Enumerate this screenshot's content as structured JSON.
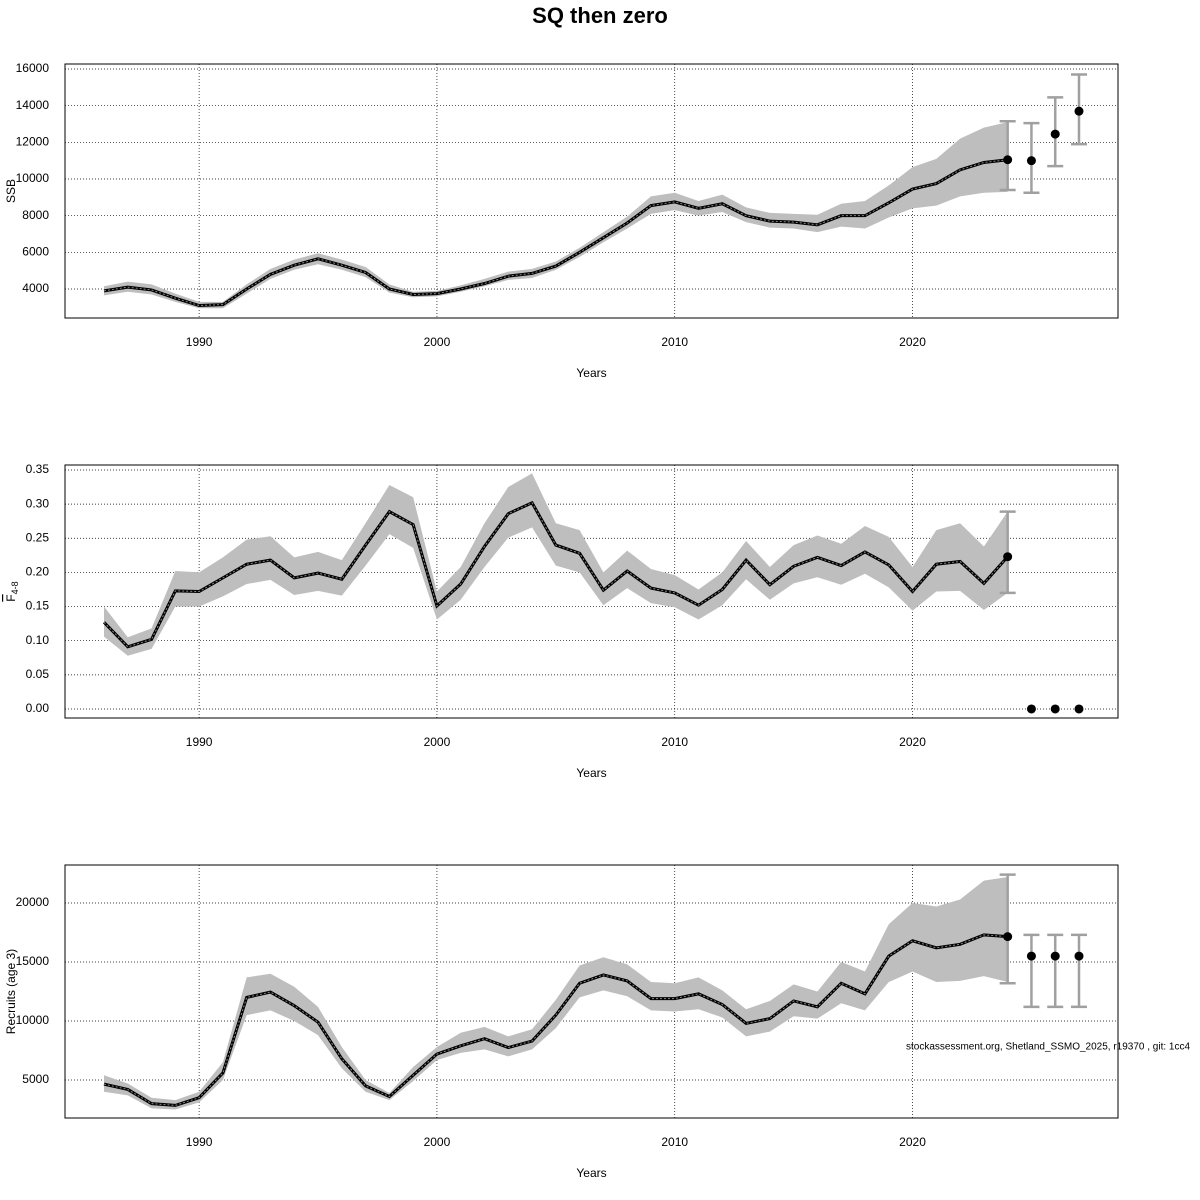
{
  "title": "SQ then zero",
  "note": "stockassessment.org, Shetland_SSMO_2025, r19370 , git: 1cc4",
  "chart_data": [
    {
      "type": "line",
      "y_label": "SSB",
      "x_label": "Years",
      "xlim": [
        1984.36,
        2028.64
      ],
      "xticks": [
        1990,
        2000,
        2010,
        2020
      ],
      "ylim": [
        2418,
        16273
      ],
      "yticks": [
        4000,
        6000,
        8000,
        10000,
        12000,
        14000,
        16000
      ],
      "grid": true,
      "line_color": "#000000",
      "band_color": "#bebebe",
      "errorbar_color": "#a0a0a0",
      "point_color": "#000000",
      "x": [
        1986,
        1987,
        1988,
        1989,
        1990,
        1991,
        1992,
        1993,
        1994,
        1995,
        1996,
        1997,
        1998,
        1999,
        2000,
        2001,
        2002,
        2003,
        2004,
        2005,
        2006,
        2007,
        2008,
        2009,
        2010,
        2011,
        2012,
        2013,
        2014,
        2015,
        2016,
        2017,
        2018,
        2019,
        2020,
        2021,
        2022,
        2023,
        2024
      ],
      "values": [
        3900,
        4100,
        3950,
        3500,
        3100,
        3150,
        4000,
        4800,
        5300,
        5650,
        5300,
        4900,
        4000,
        3700,
        3750,
        4000,
        4300,
        4700,
        4850,
        5250,
        6000,
        6800,
        7600,
        8550,
        8750,
        8400,
        8650,
        8000,
        7700,
        7650,
        7500,
        8000,
        8000,
        8700,
        9450,
        9750,
        10500,
        10900,
        11050
      ],
      "upper": [
        4150,
        4400,
        4250,
        3750,
        3300,
        3300,
        4250,
        5100,
        5600,
        5950,
        5600,
        5200,
        4250,
        3850,
        3900,
        4200,
        4550,
        4950,
        5100,
        5500,
        6250,
        7100,
        7950,
        9050,
        9250,
        8800,
        9150,
        8450,
        8150,
        8100,
        8050,
        8650,
        8800,
        9650,
        10650,
        11100,
        12200,
        12800,
        13100
      ],
      "lower": [
        3650,
        3850,
        3700,
        3300,
        2950,
        2950,
        3750,
        4550,
        5050,
        5350,
        5050,
        4650,
        3800,
        3550,
        3600,
        3850,
        4150,
        4500,
        4600,
        5050,
        5750,
        6550,
        7300,
        8100,
        8300,
        8000,
        8200,
        7650,
        7350,
        7300,
        7100,
        7400,
        7300,
        7900,
        8400,
        8550,
        9050,
        9250,
        9300
      ],
      "forecast": {
        "x": [
          2024,
          2025,
          2026,
          2027
        ],
        "values": [
          11050,
          11000,
          12450,
          13700
        ],
        "lower": [
          9400,
          9250,
          10700,
          11900
        ],
        "upper": [
          13150,
          13050,
          14450,
          15700
        ]
      }
    },
    {
      "type": "line",
      "y_label": "F",
      "y_label_sub": "4-8",
      "x_label": "Years",
      "xlim": [
        1984.36,
        2028.64
      ],
      "xticks": [
        1990,
        2000,
        2010,
        2020
      ],
      "ylim": [
        -0.0132,
        0.3573
      ],
      "yticks": [
        {
          "value": 0,
          "label": "0.00"
        },
        {
          "value": 0.05,
          "label": "0.05"
        },
        {
          "value": 0.1,
          "label": "0.10"
        },
        {
          "value": 0.15,
          "label": "0.15"
        },
        {
          "value": 0.2,
          "label": "0.20"
        },
        {
          "value": 0.25,
          "label": "0.25"
        },
        {
          "value": 0.3,
          "label": "0.30"
        },
        {
          "value": 0.35,
          "label": "0.35"
        }
      ],
      "grid": true,
      "line_color": "#000000",
      "band_color": "#bebebe",
      "errorbar_color": "#a0a0a0",
      "point_color": "#000000",
      "x": [
        1986,
        1987,
        1988,
        1989,
        1990,
        1991,
        1992,
        1993,
        1994,
        1995,
        1996,
        1997,
        1998,
        1999,
        2000,
        2001,
        2002,
        2003,
        2004,
        2005,
        2006,
        2007,
        2008,
        2009,
        2010,
        2011,
        2012,
        2013,
        2014,
        2015,
        2016,
        2017,
        2018,
        2019,
        2020,
        2021,
        2022,
        2023,
        2024
      ],
      "values": [
        0.127,
        0.091,
        0.102,
        0.173,
        0.172,
        0.192,
        0.212,
        0.218,
        0.192,
        0.199,
        0.19,
        0.24,
        0.289,
        0.27,
        0.151,
        0.183,
        0.238,
        0.286,
        0.302,
        0.24,
        0.228,
        0.174,
        0.202,
        0.177,
        0.17,
        0.152,
        0.175,
        0.218,
        0.182,
        0.209,
        0.222,
        0.21,
        0.23,
        0.211,
        0.172,
        0.212,
        0.216,
        0.184,
        0.223
      ],
      "upper": [
        0.15,
        0.105,
        0.118,
        0.202,
        0.2,
        0.222,
        0.248,
        0.253,
        0.222,
        0.23,
        0.218,
        0.272,
        0.328,
        0.31,
        0.172,
        0.208,
        0.272,
        0.325,
        0.345,
        0.272,
        0.262,
        0.2,
        0.232,
        0.205,
        0.196,
        0.175,
        0.2,
        0.246,
        0.208,
        0.24,
        0.254,
        0.242,
        0.268,
        0.252,
        0.208,
        0.262,
        0.272,
        0.238,
        0.289
      ],
      "lower": [
        0.106,
        0.078,
        0.088,
        0.15,
        0.15,
        0.165,
        0.183,
        0.189,
        0.167,
        0.173,
        0.166,
        0.21,
        0.256,
        0.236,
        0.131,
        0.16,
        0.208,
        0.251,
        0.266,
        0.21,
        0.2,
        0.152,
        0.177,
        0.155,
        0.149,
        0.131,
        0.152,
        0.19,
        0.16,
        0.184,
        0.193,
        0.182,
        0.198,
        0.178,
        0.144,
        0.172,
        0.173,
        0.145,
        0.17
      ],
      "forecast": {
        "x": [
          2024,
          2025,
          2026,
          2027
        ],
        "values": [
          0.223,
          0,
          0,
          0
        ],
        "lower": [
          0.17,
          null,
          null,
          null
        ],
        "upper": [
          0.289,
          null,
          null,
          null
        ]
      }
    },
    {
      "type": "line",
      "y_label": "Recruits (age 3)",
      "x_label": "Years",
      "xlim": [
        1984.36,
        2028.64
      ],
      "xticks": [
        1990,
        2000,
        2010,
        2020
      ],
      "ylim": [
        1780,
        23220
      ],
      "yticks": [
        5000,
        10000,
        15000,
        20000
      ],
      "grid": true,
      "line_color": "#000000",
      "band_color": "#bebebe",
      "errorbar_color": "#a0a0a0",
      "point_color": "#000000",
      "x": [
        1986,
        1987,
        1988,
        1989,
        1990,
        1991,
        1992,
        1993,
        1994,
        1995,
        1996,
        1997,
        1998,
        1999,
        2000,
        2001,
        2002,
        2003,
        2004,
        2005,
        2006,
        2007,
        2008,
        2009,
        2010,
        2011,
        2012,
        2013,
        2014,
        2015,
        2016,
        2017,
        2018,
        2019,
        2020,
        2021,
        2022,
        2023,
        2024
      ],
      "values": [
        4650,
        4200,
        3000,
        2850,
        3500,
        5600,
        12000,
        12450,
        11300,
        9900,
        6800,
        4500,
        3600,
        5400,
        7200,
        7900,
        8500,
        7750,
        8300,
        10500,
        13200,
        13900,
        13400,
        11900,
        11900,
        12300,
        11400,
        9800,
        10200,
        11700,
        11200,
        13200,
        12300,
        15500,
        16800,
        16200,
        16500,
        17300,
        17150
      ],
      "upper": [
        5400,
        4700,
        3500,
        3300,
        4000,
        6500,
        13700,
        14000,
        12900,
        11200,
        7800,
        5000,
        3900,
        6100,
        7800,
        9000,
        9500,
        8700,
        9300,
        11800,
        14700,
        15400,
        14800,
        13300,
        13200,
        13700,
        12600,
        11000,
        11700,
        13100,
        12500,
        15000,
        14200,
        18200,
        20000,
        19700,
        20300,
        21900,
        22200
      ],
      "lower": [
        4000,
        3700,
        2600,
        2500,
        3100,
        5000,
        10500,
        10900,
        10000,
        8800,
        6000,
        4000,
        3300,
        4900,
        6700,
        7300,
        7600,
        7000,
        7600,
        9400,
        12000,
        12600,
        12100,
        10900,
        10800,
        11000,
        10300,
        8700,
        9100,
        10400,
        10200,
        11500,
        10900,
        13300,
        14200,
        13300,
        13400,
        13800,
        13300
      ],
      "forecast": {
        "x": [
          2024,
          2025,
          2026,
          2027
        ],
        "values": [
          17150,
          15500,
          15500,
          15500
        ],
        "lower": [
          13200,
          11200,
          11200,
          11200
        ],
        "upper": [
          22400,
          17300,
          17300,
          17300
        ]
      }
    }
  ]
}
